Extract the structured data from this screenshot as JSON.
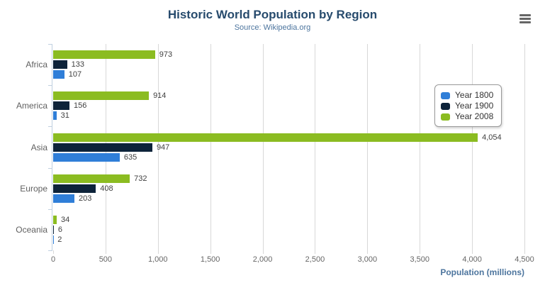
{
  "chart_data": {
    "type": "bar",
    "orientation": "horizontal",
    "title": "Historic World Population by Region",
    "subtitle": "Source: Wikipedia.org",
    "categories": [
      "Africa",
      "America",
      "Asia",
      "Europe",
      "Oceania"
    ],
    "series": [
      {
        "name": "Year 1800",
        "color": "#2f7ed8",
        "values": [
          107,
          31,
          635,
          203,
          2
        ]
      },
      {
        "name": "Year 1900",
        "color": "#0d233a",
        "values": [
          133,
          156,
          947,
          408,
          6
        ]
      },
      {
        "name": "Year 2008",
        "color": "#8bbc21",
        "values": [
          973,
          914,
          4054,
          732,
          34
        ]
      }
    ],
    "series_display_order_top_to_bottom": [
      "Year 2008",
      "Year 1900",
      "Year 1800"
    ],
    "xlabel": "Population (millions)",
    "xticks": [
      0,
      500,
      1000,
      1500,
      2000,
      2500,
      3000,
      3500,
      4000,
      4500
    ],
    "xlim": [
      0,
      4500
    ],
    "grid": true,
    "data_labels": true,
    "legend_position": "middle-right"
  },
  "legend": {
    "items": [
      {
        "label": "Year 1800",
        "color": "#2f7ed8"
      },
      {
        "label": "Year 1900",
        "color": "#0d233a"
      },
      {
        "label": "Year 2008",
        "color": "#8bbc21"
      }
    ]
  },
  "colors": {
    "title": "#274b6d",
    "subtitle": "#4d759e",
    "axis_title": "#4d759e",
    "tick_label": "#666666",
    "category_label": "#606060",
    "data_label": "#404040",
    "gridline": "#d8d8d8",
    "axis_line": "#c0d0e0",
    "legend_border": "#999999",
    "menu_icon": "#666666",
    "background": "#ffffff"
  }
}
